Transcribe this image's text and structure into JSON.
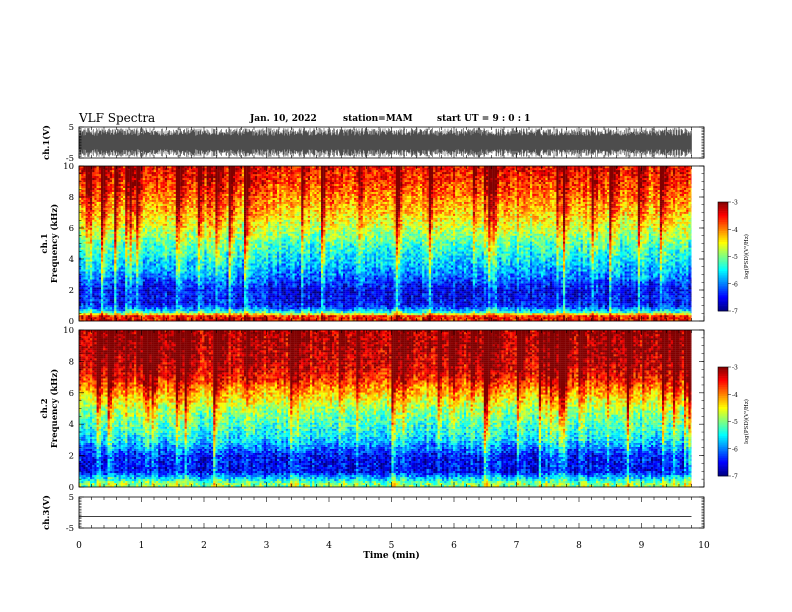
{
  "header": {
    "title": "VLF Spectra",
    "date": "Jan. 10, 2022",
    "station": "station=MAM",
    "start": "start UT =  9 : 0  : 1"
  },
  "chart_data": [
    {
      "type": "line",
      "panel": "ch1-waveform",
      "ylabel": "ch.1(V)",
      "ylim": [
        -5,
        5
      ],
      "yticks": [
        5,
        -5
      ],
      "xlim": [
        0,
        10
      ],
      "note_visible": "dense black waveform, amplitude about ±4.7 V, continuous over 0–9.8 min",
      "color": "#000000"
    },
    {
      "type": "heatmap",
      "panel": "ch1-spectrogram",
      "ylabel": "ch.1 Frequency (kHz)",
      "ylim": [
        0,
        10
      ],
      "yticks": [
        0,
        2,
        4,
        6,
        8,
        10
      ],
      "xlim": [
        0,
        10
      ],
      "data_extent_min": 9.8,
      "colorbar": {
        "label": "log(PSD)(V²/Hz)",
        "range": [
          -7,
          -3
        ],
        "ticks": [
          "-3",
          "-4",
          "-5",
          "-6",
          "-7"
        ]
      },
      "log_psd_profile_by_freq_khz": [
        [
          0.3,
          -3.6
        ],
        [
          0.6,
          -5.5
        ],
        [
          1.0,
          -6.5
        ],
        [
          2.0,
          -6.6
        ],
        [
          3.0,
          -6.0
        ],
        [
          4.0,
          -5.6
        ],
        [
          5.0,
          -5.2
        ],
        [
          6.0,
          -4.7
        ],
        [
          7.0,
          -4.3
        ],
        [
          8.0,
          -4.0
        ],
        [
          9.0,
          -3.7
        ],
        [
          10.0,
          -3.5
        ]
      ]
    },
    {
      "type": "heatmap",
      "panel": "ch2-spectrogram",
      "ylabel": "ch.2 Frequency (kHz)",
      "ylim": [
        0,
        10
      ],
      "yticks": [
        0,
        2,
        4,
        6,
        8,
        10
      ],
      "xlim": [
        0,
        10
      ],
      "data_extent_min": 9.8,
      "colorbar": {
        "label": "log(PSD)(V²/Hz)",
        "range": [
          -7,
          -3
        ],
        "ticks": [
          "-3",
          "-4",
          "-5",
          "-6",
          "-7"
        ]
      },
      "log_psd_profile_by_freq_khz": [
        [
          0.2,
          -5.0
        ],
        [
          1.0,
          -6.6
        ],
        [
          2.0,
          -6.5
        ],
        [
          3.0,
          -5.7
        ],
        [
          4.0,
          -5.3
        ],
        [
          5.0,
          -4.9
        ],
        [
          6.0,
          -4.3
        ],
        [
          7.0,
          -3.6
        ],
        [
          8.0,
          -3.3
        ],
        [
          9.0,
          -3.2
        ],
        [
          10.0,
          -3.2
        ]
      ]
    },
    {
      "type": "line",
      "panel": "ch3-waveform",
      "ylabel": "ch.3(V)",
      "ylim": [
        -5,
        5
      ],
      "yticks": [
        5,
        -5
      ],
      "xlim": [
        0,
        10
      ],
      "series": [
        {
          "x": [
            0,
            9.8
          ],
          "values": [
            -1.3,
            -1.3
          ]
        }
      ],
      "color": "#000000"
    }
  ],
  "xaxis": {
    "label": "Time (min)",
    "ticks": [
      "0",
      "1",
      "2",
      "3",
      "4",
      "5",
      "6",
      "7",
      "8",
      "9",
      "10"
    ]
  }
}
